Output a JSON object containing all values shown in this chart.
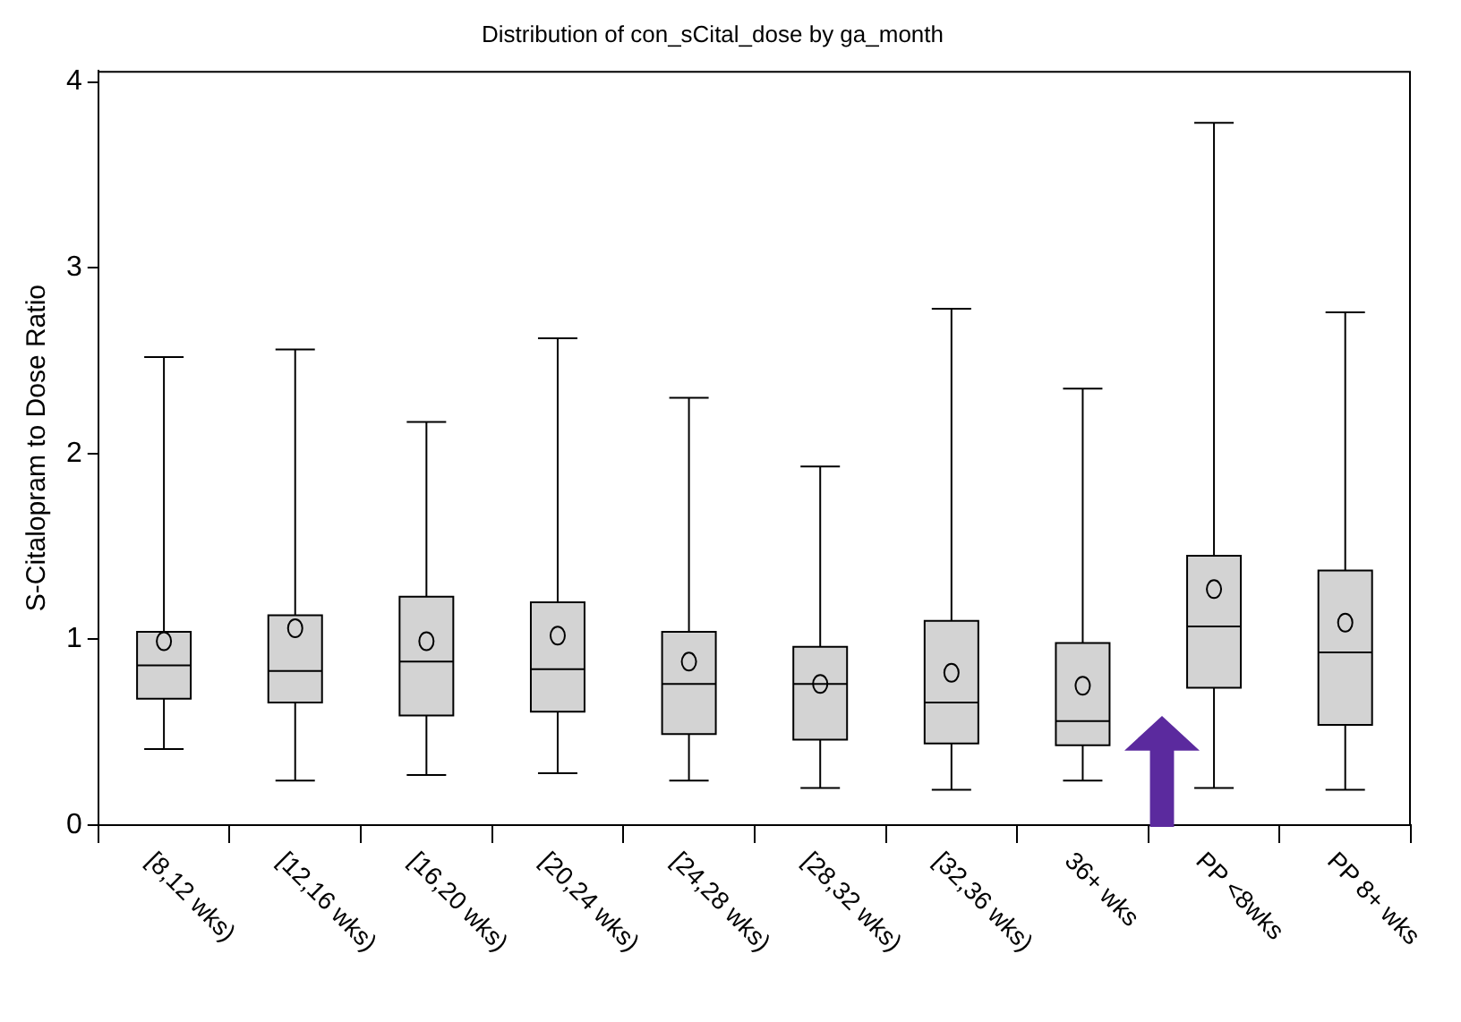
{
  "chart_data": {
    "type": "box",
    "title": "Distribution of con_sCital_dose by ga_month",
    "ylabel": "S-Citalopram to Dose Ratio",
    "categories": [
      "[8,12 wks)",
      "[12,16 wks)",
      "[16,20 wks)",
      "[20,24 wks)",
      "[24,28 wks)",
      "[28,32 wks)",
      "[32,36 wks)",
      "36+ wks",
      "PP <8wks",
      "PP 8+ wks"
    ],
    "series": [
      {
        "color": "#d3d3d3",
        "boxes": [
          {
            "low": 0.41,
            "q1": 0.68,
            "median": 0.86,
            "q3": 1.04,
            "high": 2.52,
            "mean": 0.99
          },
          {
            "low": 0.24,
            "q1": 0.66,
            "median": 0.83,
            "q3": 1.13,
            "high": 2.56,
            "mean": 1.06
          },
          {
            "low": 0.27,
            "q1": 0.59,
            "median": 0.88,
            "q3": 1.23,
            "high": 2.17,
            "mean": 0.99
          },
          {
            "low": 0.28,
            "q1": 0.61,
            "median": 0.84,
            "q3": 1.2,
            "high": 2.62,
            "mean": 1.02
          },
          {
            "low": 0.24,
            "q1": 0.49,
            "median": 0.76,
            "q3": 1.04,
            "high": 2.3,
            "mean": 0.88
          },
          {
            "low": 0.2,
            "q1": 0.46,
            "median": 0.76,
            "q3": 0.96,
            "high": 1.93,
            "mean": 0.76
          },
          {
            "low": 0.19,
            "q1": 0.44,
            "median": 0.66,
            "q3": 1.1,
            "high": 2.78,
            "mean": 0.82
          },
          {
            "low": 0.24,
            "q1": 0.43,
            "median": 0.56,
            "q3": 0.98,
            "high": 2.35,
            "mean": 0.75
          },
          {
            "low": 0.2,
            "q1": 0.74,
            "median": 1.07,
            "q3": 1.45,
            "high": 3.78,
            "mean": 1.27
          },
          {
            "low": 0.19,
            "q1": 0.54,
            "median": 0.93,
            "q3": 1.37,
            "high": 2.76,
            "mean": 1.09
          }
        ]
      }
    ],
    "ylim": [
      0,
      4.06
    ],
    "yticks": [
      0,
      1,
      2,
      3,
      4
    ],
    "grid": false,
    "legend": false,
    "marker": "circle"
  }
}
